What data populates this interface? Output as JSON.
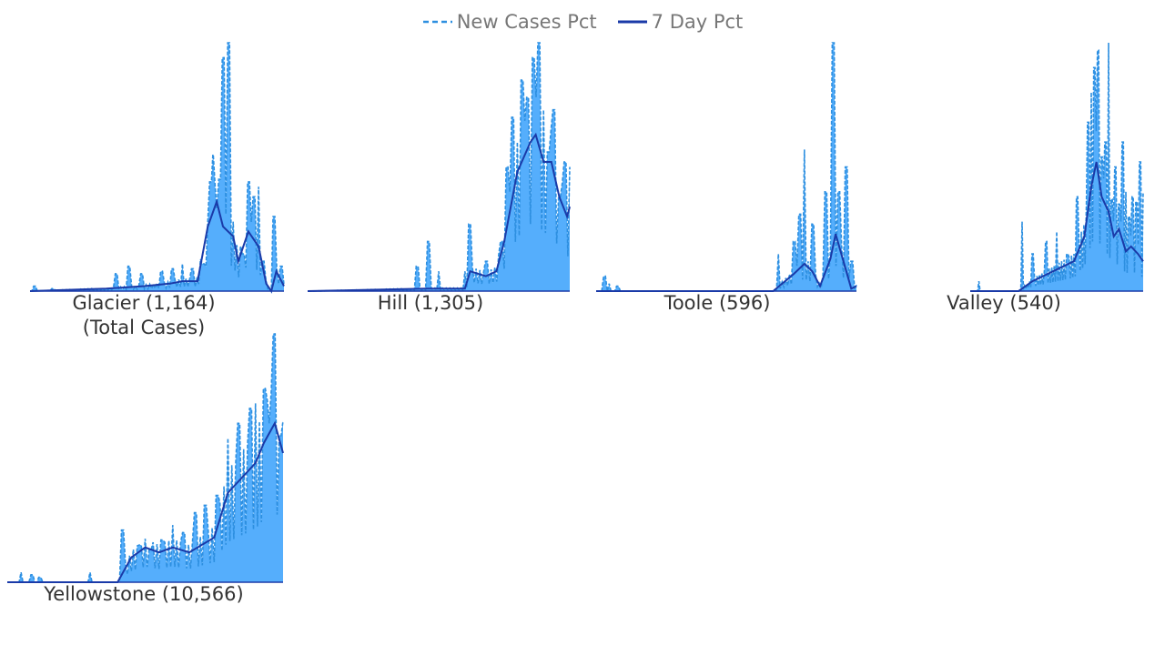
{
  "chart_data": {
    "type": "area",
    "title": "",
    "legend": {
      "placement": "top-center",
      "entries": [
        {
          "name": "New Cases Pct",
          "style": "dashed-line",
          "color": "#2d8fe0"
        },
        {
          "name": "7 Day Pct",
          "style": "solid-line",
          "color": "#1a3aa8"
        }
      ]
    },
    "colors": {
      "area_fill": "#55aefc",
      "daily_line": "#2d8fe0",
      "avg_line": "#1a3aa8",
      "baseline": "#1a3aa8"
    },
    "axes_visible": false,
    "grid": false,
    "units": "percent of peak",
    "panels": [
      {
        "label": "Glacier (1,164)",
        "sublabel": "(Total Cases)",
        "peaks_new": [
          [
            0.02,
            2
          ],
          [
            0.09,
            1
          ],
          [
            0.34,
            7
          ],
          [
            0.39,
            10
          ],
          [
            0.44,
            7
          ],
          [
            0.52,
            8
          ],
          [
            0.56,
            9
          ],
          [
            0.6,
            11
          ],
          [
            0.64,
            9
          ],
          [
            0.68,
            11
          ],
          [
            0.7,
            28
          ],
          [
            0.71,
            44
          ],
          [
            0.72,
            55
          ],
          [
            0.735,
            33
          ],
          [
            0.745,
            45
          ],
          [
            0.76,
            94
          ],
          [
            0.78,
            100
          ],
          [
            0.8,
            28
          ],
          [
            0.84,
            15
          ],
          [
            0.86,
            44
          ],
          [
            0.88,
            38
          ],
          [
            0.9,
            42
          ],
          [
            0.92,
            12
          ],
          [
            0.96,
            30
          ],
          [
            0.99,
            10
          ]
        ],
        "avg": [
          [
            0,
            0
          ],
          [
            0.3,
            1
          ],
          [
            0.45,
            2
          ],
          [
            0.55,
            3
          ],
          [
            0.6,
            4
          ],
          [
            0.66,
            4
          ],
          [
            0.7,
            26
          ],
          [
            0.735,
            36
          ],
          [
            0.76,
            26
          ],
          [
            0.8,
            22
          ],
          [
            0.82,
            12
          ],
          [
            0.86,
            24
          ],
          [
            0.9,
            18
          ],
          [
            0.93,
            3
          ],
          [
            0.95,
            0
          ],
          [
            0.97,
            8
          ],
          [
            1,
            2
          ]
        ]
      },
      {
        "label": "Hill (1,305)",
        "peaks_new": [
          [
            0.42,
            10
          ],
          [
            0.46,
            20
          ],
          [
            0.5,
            8
          ],
          [
            0.6,
            8
          ],
          [
            0.62,
            27
          ],
          [
            0.68,
            12
          ],
          [
            0.74,
            20
          ],
          [
            0.76,
            50
          ],
          [
            0.78,
            70
          ],
          [
            0.8,
            60
          ],
          [
            0.82,
            85
          ],
          [
            0.84,
            78
          ],
          [
            0.86,
            94
          ],
          [
            0.88,
            100
          ],
          [
            0.9,
            73
          ],
          [
            0.92,
            56
          ],
          [
            0.94,
            73
          ],
          [
            0.96,
            38
          ],
          [
            0.98,
            52
          ],
          [
            1,
            50
          ]
        ],
        "avg": [
          [
            0,
            0
          ],
          [
            0.45,
            1
          ],
          [
            0.6,
            1
          ],
          [
            0.62,
            8
          ],
          [
            0.68,
            6
          ],
          [
            0.72,
            8
          ],
          [
            0.75,
            20
          ],
          [
            0.8,
            48
          ],
          [
            0.85,
            60
          ],
          [
            0.87,
            63
          ],
          [
            0.9,
            52
          ],
          [
            0.93,
            52
          ],
          [
            0.96,
            38
          ],
          [
            0.99,
            30
          ],
          [
            1,
            34
          ]
        ]
      },
      {
        "label": "Toole (596)",
        "peaks_new": [
          [
            0.03,
            6
          ],
          [
            0.05,
            3
          ],
          [
            0.08,
            2
          ],
          [
            0.7,
            15
          ],
          [
            0.76,
            20
          ],
          [
            0.78,
            31
          ],
          [
            0.8,
            57
          ],
          [
            0.83,
            27
          ],
          [
            0.88,
            40
          ],
          [
            0.91,
            100
          ],
          [
            0.93,
            40
          ],
          [
            0.96,
            50
          ],
          [
            0.98,
            12
          ]
        ],
        "avg": [
          [
            0,
            0
          ],
          [
            0.5,
            0
          ],
          [
            0.68,
            0
          ],
          [
            0.76,
            7
          ],
          [
            0.8,
            11
          ],
          [
            0.83,
            8
          ],
          [
            0.86,
            2
          ],
          [
            0.9,
            13
          ],
          [
            0.92,
            23
          ],
          [
            0.95,
            12
          ],
          [
            0.98,
            1
          ],
          [
            1,
            2
          ]
        ]
      },
      {
        "label": "Valley (540)",
        "peaks_new": [
          [
            0.05,
            4
          ],
          [
            0.3,
            28
          ],
          [
            0.36,
            15
          ],
          [
            0.44,
            20
          ],
          [
            0.5,
            24
          ],
          [
            0.56,
            15
          ],
          [
            0.62,
            38
          ],
          [
            0.68,
            68
          ],
          [
            0.7,
            80
          ],
          [
            0.72,
            90
          ],
          [
            0.74,
            97
          ],
          [
            0.76,
            54
          ],
          [
            0.78,
            60
          ],
          [
            0.8,
            100
          ],
          [
            0.82,
            37
          ],
          [
            0.84,
            50
          ],
          [
            0.86,
            35
          ],
          [
            0.88,
            60
          ],
          [
            0.9,
            40
          ],
          [
            0.92,
            30
          ],
          [
            0.94,
            38
          ],
          [
            0.96,
            36
          ],
          [
            0.98,
            52
          ],
          [
            1,
            40
          ]
        ],
        "avg": [
          [
            0,
            0
          ],
          [
            0.28,
            0
          ],
          [
            0.36,
            4
          ],
          [
            0.6,
            12
          ],
          [
            0.66,
            22
          ],
          [
            0.7,
            42
          ],
          [
            0.73,
            52
          ],
          [
            0.76,
            38
          ],
          [
            0.8,
            32
          ],
          [
            0.83,
            22
          ],
          [
            0.86,
            25
          ],
          [
            0.9,
            16
          ],
          [
            0.93,
            18
          ],
          [
            0.97,
            15
          ],
          [
            1,
            12
          ]
        ]
      },
      {
        "label": "Yellowstone (10,566)",
        "peaks_new": [
          [
            0.05,
            4
          ],
          [
            0.09,
            3
          ],
          [
            0.12,
            2
          ],
          [
            0.3,
            4
          ],
          [
            0.42,
            21
          ],
          [
            0.48,
            15
          ],
          [
            0.52,
            13
          ],
          [
            0.56,
            17
          ],
          [
            0.6,
            23
          ],
          [
            0.64,
            20
          ],
          [
            0.68,
            28
          ],
          [
            0.72,
            31
          ],
          [
            0.76,
            35
          ],
          [
            0.8,
            58
          ],
          [
            0.84,
            64
          ],
          [
            0.88,
            70
          ],
          [
            0.9,
            72
          ],
          [
            0.93,
            78
          ],
          [
            0.95,
            64
          ],
          [
            0.97,
            100
          ],
          [
            0.99,
            59
          ]
        ],
        "avg": [
          [
            0,
            0
          ],
          [
            0.4,
            0
          ],
          [
            0.45,
            10
          ],
          [
            0.5,
            14
          ],
          [
            0.55,
            12
          ],
          [
            0.6,
            14
          ],
          [
            0.66,
            12
          ],
          [
            0.75,
            18
          ],
          [
            0.8,
            36
          ],
          [
            0.85,
            42
          ],
          [
            0.9,
            48
          ],
          [
            0.93,
            56
          ],
          [
            0.97,
            64
          ],
          [
            1,
            52
          ]
        ]
      }
    ]
  }
}
